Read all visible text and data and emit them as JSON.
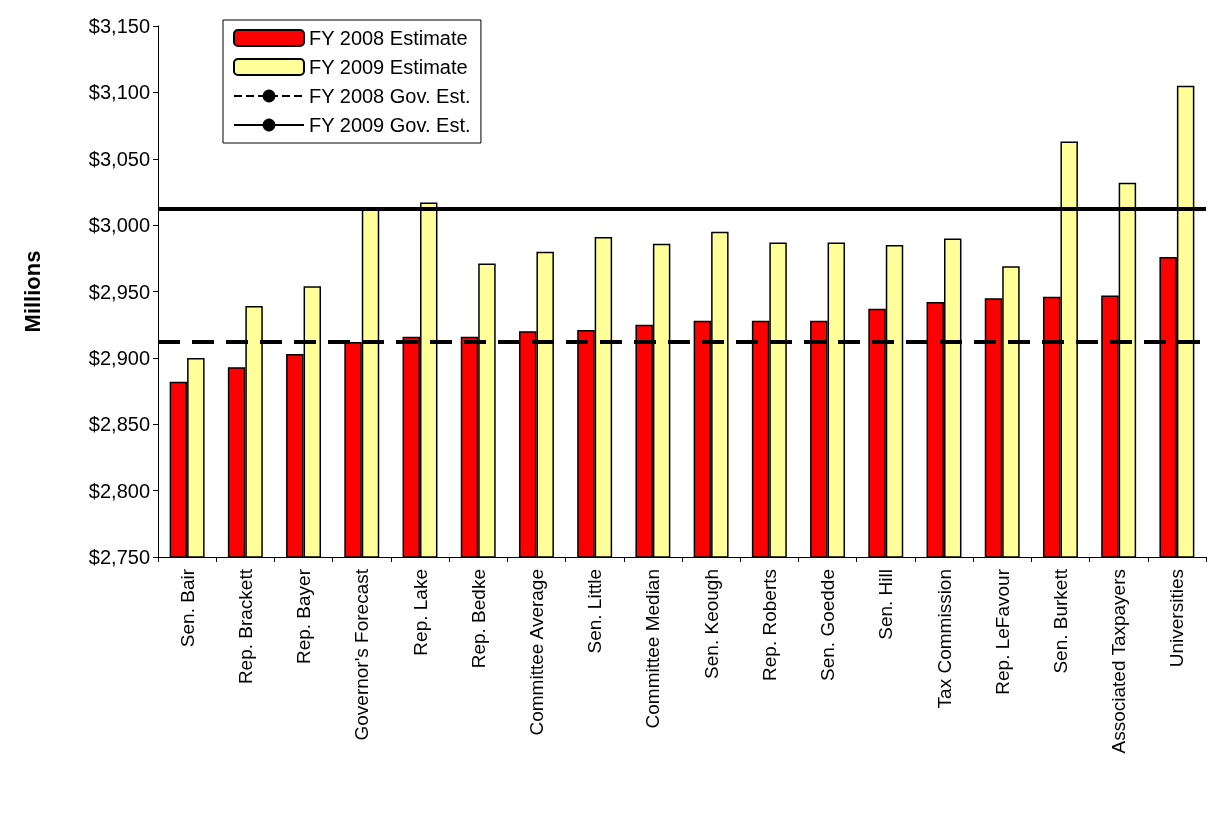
{
  "chart_data": {
    "type": "bar",
    "ylabel": "Millions",
    "categories": [
      "Sen. Bair",
      "Rep. Brackett",
      "Rep. Bayer",
      "Governor's Forecast",
      "Rep. Lake",
      "Rep. Bedke",
      "Committee Average",
      "Sen. Little",
      "Committee Median",
      "Sen. Keough",
      "Rep. Roberts",
      "Sen. Goedde",
      "Sen. Hill",
      "Tax Commission",
      "Rep. LeFavour",
      "Sen. Burkett",
      "Associated Taxpayers",
      "Universities"
    ],
    "series": [
      {
        "name": "FY 2008 Estimate",
        "color": "#ff0000",
        "values": [
          2882,
          2893,
          2903,
          2912,
          2916,
          2916,
          2920,
          2921,
          2925,
          2928,
          2928,
          2928,
          2937,
          2942,
          2945,
          2946,
          2947,
          2976
        ]
      },
      {
        "name": "FY 2009 Estimate",
        "color": "#ffff99",
        "values": [
          2900,
          2939,
          2954,
          3012,
          3017,
          2971,
          2980,
          2991,
          2986,
          2995,
          2987,
          2987,
          2985,
          2990,
          2969,
          3063,
          3032,
          3105
        ]
      }
    ],
    "ref_lines": [
      {
        "axis": "y",
        "value": 2912,
        "label": "FY 2008 Gov. Est.",
        "color": "#000000",
        "line_style": "dashed"
      },
      {
        "axis": "y",
        "value": 3012,
        "label": "FY 2009 Gov. Est.",
        "color": "#000000",
        "line_style": "solid"
      }
    ],
    "ylim": [
      2750,
      3150
    ],
    "yticks": [
      {
        "value": 2750,
        "label": "$2,750"
      },
      {
        "value": 2800,
        "label": "$2,800"
      },
      {
        "value": 2850,
        "label": "$2,850"
      },
      {
        "value": 2900,
        "label": "$2,900"
      },
      {
        "value": 2950,
        "label": "$2,950"
      },
      {
        "value": 3000,
        "label": "$3,000"
      },
      {
        "value": 3050,
        "label": "$3,050"
      },
      {
        "value": 3100,
        "label": "$3,100"
      },
      {
        "value": 3150,
        "label": "$3,150"
      }
    ],
    "grid": false,
    "legend": "top left"
  }
}
